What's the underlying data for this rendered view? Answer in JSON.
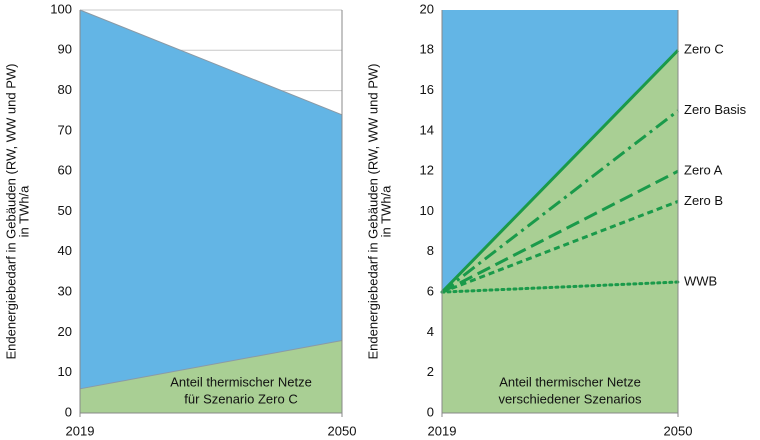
{
  "chart_data": [
    {
      "type": "area",
      "ylabel": [
        "Endenergiebedarf in Gebäuden (RW, WW und PW)",
        "in TWh/a"
      ],
      "x": [
        2019,
        2050
      ],
      "xlim": [
        2019,
        2050
      ],
      "xticks": [
        2019,
        2050
      ],
      "ylim": [
        0,
        100
      ],
      "yticks": [
        0,
        10,
        20,
        30,
        40,
        50,
        60,
        70,
        80,
        90,
        100
      ],
      "grid": true,
      "series": [
        {
          "color": "#63b5e5",
          "values": [
            100,
            74
          ]
        },
        {
          "color": "#a9cf94",
          "values": [
            6,
            18
          ]
        }
      ],
      "annotation": [
        "Anteil thermischer Netze",
        "für Szenario Zero C"
      ]
    },
    {
      "type": "line",
      "ylabel": [
        "Endenergiebedarf in Gebäuden (RW, WW und PW)",
        "in TWh/a"
      ],
      "x": [
        2019,
        2050
      ],
      "xlim": [
        2019,
        2050
      ],
      "xticks": [
        2019,
        2050
      ],
      "ylim": [
        0,
        20
      ],
      "yticks": [
        0,
        2,
        4,
        6,
        8,
        10,
        12,
        14,
        16,
        18,
        20
      ],
      "grid": false,
      "background": "#63b5e5",
      "series": [
        {
          "name": "Zero C",
          "color": "#1a9a4a",
          "dash": "solid",
          "fill": "#a9cf94",
          "values": [
            6,
            18
          ]
        },
        {
          "name": "Zero Basis",
          "color": "#1a9a4a",
          "dash": "14,5,3,5",
          "values": [
            6,
            15
          ]
        },
        {
          "name": "Zero A",
          "color": "#1a9a4a",
          "dash": "14,6",
          "values": [
            6,
            12
          ]
        },
        {
          "name": "Zero B",
          "color": "#1a9a4a",
          "dash": "6,4",
          "values": [
            6,
            10.5
          ]
        },
        {
          "name": "WWB",
          "color": "#1a9a4a",
          "dash": "2,4",
          "values": [
            6,
            6.5
          ]
        }
      ],
      "annotation": [
        "Anteil thermischer Netze",
        "verschiedener Szenarios"
      ]
    }
  ]
}
